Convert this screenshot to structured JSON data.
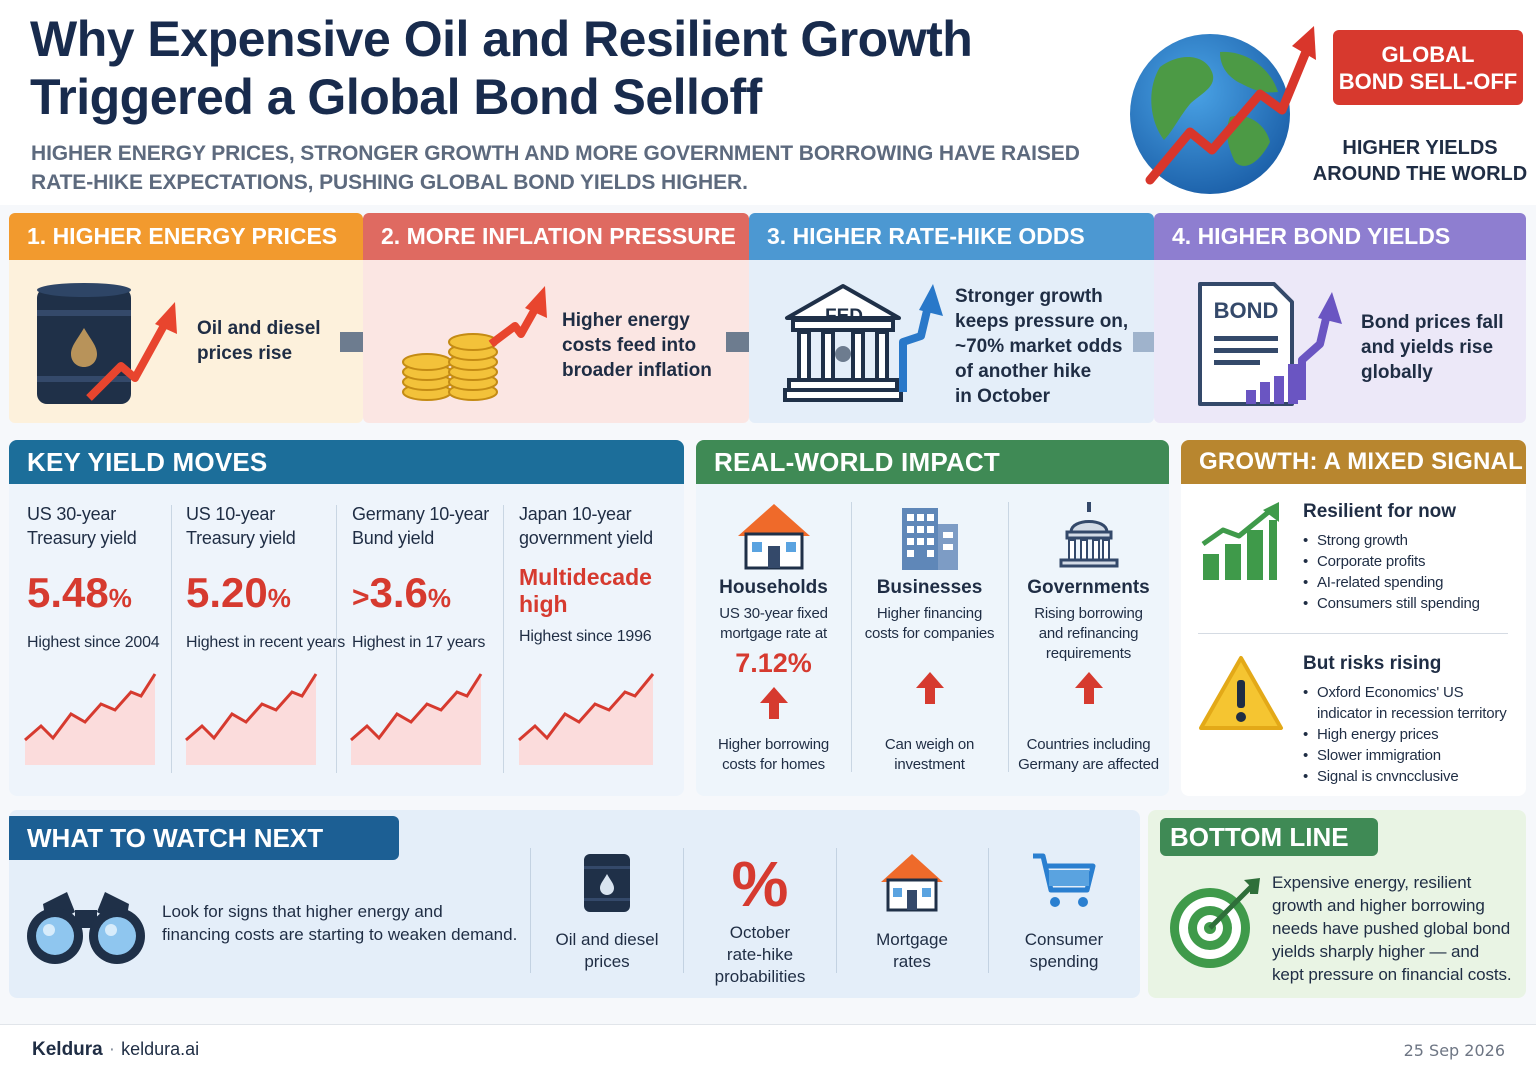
{
  "header": {
    "title_line1": "Why Expensive Oil and Resilient Growth",
    "title_line2": "Triggered a Global Bond Selloff",
    "subtitle_line1": "Higher energy prices, stronger growth and more government borrowing have raised",
    "subtitle_line2": "rate-hike expectations, pushing global bond yields higher.",
    "badge_line1": "GLOBAL",
    "badge_line2": "BOND SELL-OFF",
    "badge_sub_line1": "HIGHER YIELDS",
    "badge_sub_line2": "AROUND THE WORLD"
  },
  "steps": [
    {
      "title": "1. HIGHER ENERGY PRICES",
      "lines": [
        "Oil and diesel",
        "prices rise"
      ],
      "icon": "oil-barrel-icon"
    },
    {
      "title": "2. MORE INFLATION PRESSURE",
      "lines": [
        "Higher energy",
        "costs feed into",
        "broader inflation"
      ],
      "icon": "coins-icon"
    },
    {
      "title": "3. HIGHER RATE-HIKE ODDS",
      "lines": [
        "Stronger growth",
        "keeps pressure on,",
        "~70% market odds",
        "of another hike",
        "in October"
      ],
      "icon": "fed-building-icon",
      "icon_label": "FED"
    },
    {
      "title": "4. HIGHER BOND YIELDS",
      "lines": [
        "Bond prices fall",
        "and yields rise",
        "globally"
      ],
      "icon": "bond-document-icon",
      "icon_label": "BOND"
    }
  ],
  "yields": {
    "heading": "KEY YIELD MOVES",
    "items": [
      {
        "label_lines": [
          "US 30-year",
          "Treasury yield"
        ],
        "value": "5.48",
        "unit": "%",
        "note": "Highest since 2004"
      },
      {
        "label_lines": [
          "US 10-year",
          "Treasury yield"
        ],
        "value": "5.20",
        "unit": "%",
        "note": "Highest in recent years"
      },
      {
        "label_lines": [
          "Germany 10-year",
          "Bund yield"
        ],
        "prefix": ">",
        "value": "3.6",
        "unit": "%",
        "note": "Highest in 17 years"
      },
      {
        "label_lines": [
          "Japan 10-year",
          "government yield"
        ],
        "value_lines": [
          "Multidecade",
          "high"
        ],
        "note": "Highest since 1996"
      }
    ]
  },
  "impact": {
    "heading": "REAL-WORLD IMPACT",
    "items": [
      {
        "title": "Households",
        "desc_lines": [
          "US 30-year fixed",
          "mortgage rate at"
        ],
        "value": "7.12%",
        "foot_lines": [
          "Higher borrowing",
          "costs for homes"
        ],
        "icon": "house-icon"
      },
      {
        "title": "Businesses",
        "desc_lines": [
          "Higher financing",
          "costs for companies"
        ],
        "foot_lines": [
          "Can weigh on",
          "investment"
        ],
        "icon": "office-building-icon"
      },
      {
        "title": "Governments",
        "desc_lines": [
          "Rising borrowing",
          "and refinancing",
          "requirements"
        ],
        "foot_lines": [
          "Countries including",
          "Germany are affected"
        ],
        "icon": "capitol-icon"
      }
    ]
  },
  "growth": {
    "heading": "GROWTH: A MIXED SIGNAL",
    "resilient_title": "Resilient for now",
    "resilient_items": [
      "Strong growth",
      "Corporate profits",
      "AI-related spending",
      "Consumers still spending"
    ],
    "risks_title": "But risks rising",
    "risks_items": [
      "Oxford Economics' US indicator in recession territory",
      "High energy prices",
      "Slower immigration",
      "Signal is cnvncclusive"
    ]
  },
  "watch": {
    "heading": "WHAT TO WATCH NEXT",
    "text_lines": [
      "Look for signs that higher energy and",
      "financing costs are starting to weaken demand."
    ],
    "items": [
      {
        "label_lines": [
          "Oil and diesel",
          "prices"
        ],
        "icon": "oil-barrel-icon"
      },
      {
        "label_lines": [
          "October",
          "rate-hike",
          "probabilities"
        ],
        "icon": "percent-icon",
        "icon_label": "%"
      },
      {
        "label_lines": [
          "Mortgage",
          "rates"
        ],
        "icon": "house-icon"
      },
      {
        "label_lines": [
          "Consumer",
          "spending"
        ],
        "icon": "shopping-cart-icon"
      }
    ]
  },
  "bottom_line": {
    "heading": "BOTTOM LINE",
    "text_lines": [
      "Expensive energy, resilient",
      "growth and higher borrowing",
      "needs have pushed global bond",
      "yields sharply higher — and",
      "kept pressure on financial costs."
    ]
  },
  "footer": {
    "brand": "Keldura",
    "separator": "·",
    "url": "keldura.ai",
    "date": "25 Sep 2026"
  },
  "colors": {
    "navy": "#182b4d",
    "red": "#d63a2f",
    "orange": "#f29a2e",
    "salmon": "#df6a61",
    "blue": "#4c98d2",
    "purple": "#8e7ed0",
    "teal": "#1c6e9a",
    "green": "#3f8a55",
    "gold": "#b8862f"
  }
}
